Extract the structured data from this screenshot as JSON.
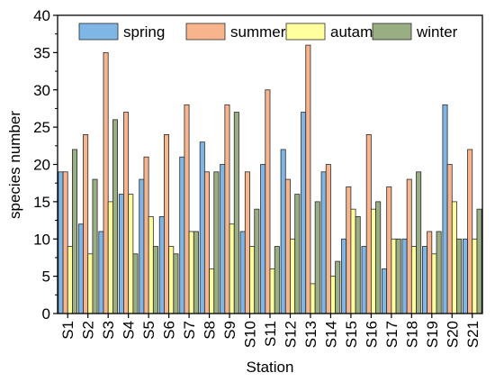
{
  "chart_data": {
    "type": "bar",
    "title": "",
    "xlabel": "Station",
    "ylabel": "species number",
    "ylim": [
      0,
      40
    ],
    "yticks": [
      0,
      5,
      10,
      15,
      20,
      25,
      30,
      35,
      40
    ],
    "grid": false,
    "legend_position": "top",
    "categories": [
      "S1",
      "S2",
      "S3",
      "S4",
      "S5",
      "S6",
      "S7",
      "S8",
      "S9",
      "S10",
      "S11",
      "S12",
      "S13",
      "S14",
      "S15",
      "S16",
      "S17",
      "S18",
      "S19",
      "S20",
      "S21"
    ],
    "series": [
      {
        "name": "spring",
        "color": "#7eb6e6",
        "values": [
          19,
          12,
          11,
          16,
          18,
          13,
          21,
          23,
          20,
          11,
          20,
          22,
          27,
          19,
          10,
          9,
          6,
          10,
          9,
          28,
          10
        ]
      },
      {
        "name": "summer",
        "color": "#f7b48d",
        "values": [
          19,
          24,
          35,
          27,
          21,
          24,
          28,
          19,
          28,
          19,
          30,
          18,
          36,
          20,
          17,
          24,
          17,
          18,
          11,
          20,
          22
        ]
      },
      {
        "name": "autamn",
        "color": "#ffff9e",
        "values": [
          9,
          8,
          15,
          16,
          13,
          9,
          11,
          6,
          12,
          9,
          6,
          10,
          4,
          5,
          14,
          14,
          10,
          9,
          8,
          15,
          10
        ]
      },
      {
        "name": "winter",
        "color": "#9aae84",
        "values": [
          22,
          18,
          26,
          8,
          9,
          8,
          11,
          19,
          27,
          14,
          9,
          16,
          15,
          7,
          13,
          15,
          10,
          19,
          11,
          10,
          14
        ]
      }
    ]
  }
}
